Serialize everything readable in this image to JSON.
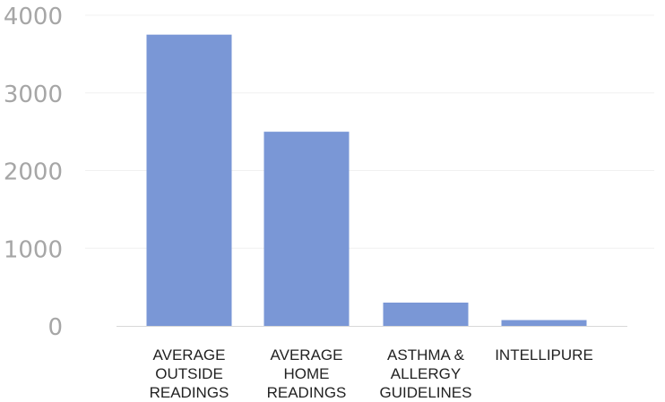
{
  "chart_data": {
    "type": "bar",
    "categories": [
      [
        "AVERAGE",
        "OUTSIDE",
        "READINGS"
      ],
      [
        "AVERAGE",
        "HOME",
        "READINGS"
      ],
      [
        "ASTHMA &",
        "ALLERGY",
        "GUIDELINES"
      ],
      [
        "INTELLIPURE"
      ]
    ],
    "values": [
      3750,
      2500,
      300,
      75
    ],
    "ylim": [
      0,
      4000
    ],
    "yticks": [
      "0",
      "1000",
      "2000",
      "3000",
      "4000"
    ],
    "ytick_values": [
      0,
      1000,
      2000,
      3000,
      4000
    ],
    "bar_color": "#7a97d6",
    "grid": true,
    "legend": "none"
  }
}
